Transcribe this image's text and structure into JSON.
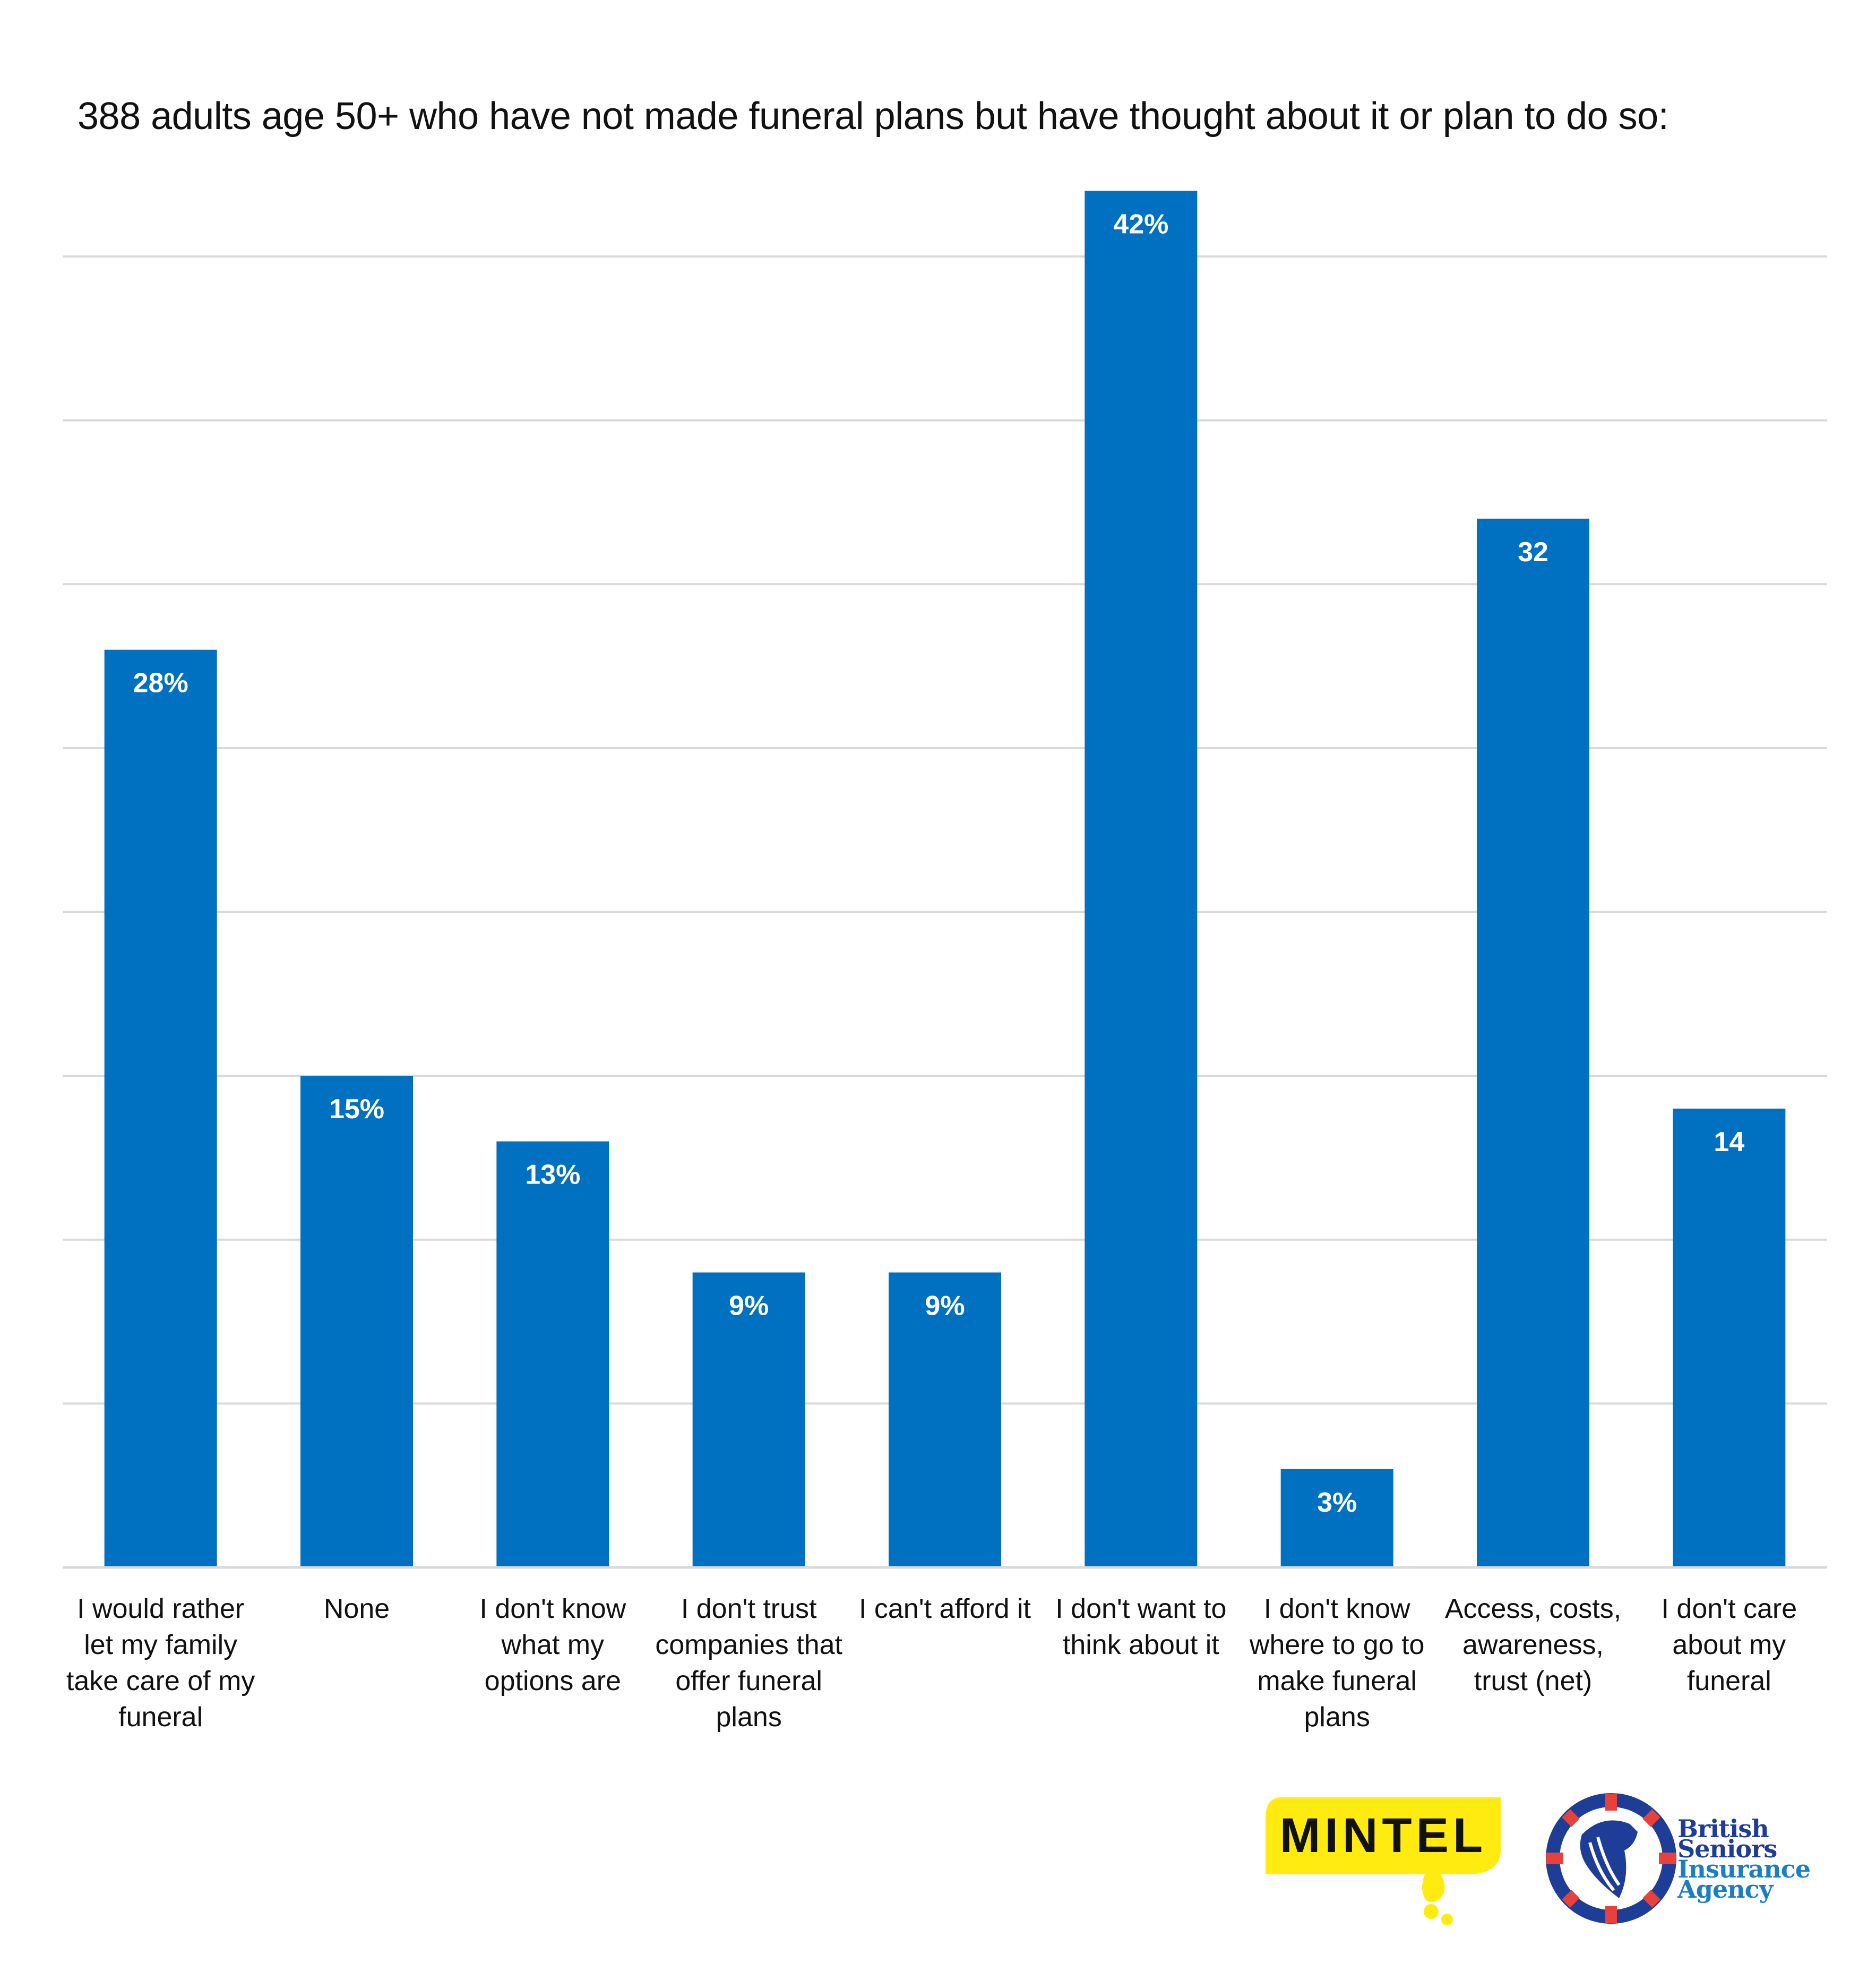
{
  "chart_data": {
    "type": "bar",
    "title": "388 adults age 50+ who have not made funeral plans but have thought about it or plan to do so:",
    "categories": [
      "I would rather let my family take care of my funeral",
      "None",
      "I don't know what my options are",
      "I don't trust companies that offer funeral plans",
      "I can't afford it",
      "I don't want to think about it",
      "I don't know where to go to make funeral plans",
      "Access, costs, awareness, trust (net)",
      "I don't care about my funeral"
    ],
    "category_lines": [
      [
        "I would rather",
        "let my family",
        "take care of my",
        "funeral"
      ],
      [
        "None"
      ],
      [
        "I don't know",
        "what my",
        "options are"
      ],
      [
        "I don't trust",
        "companies that",
        "offer funeral",
        "plans"
      ],
      [
        "I can't afford it"
      ],
      [
        "I don't want to",
        "think about it"
      ],
      [
        "I don't know",
        "where to go to",
        "make funeral",
        "plans"
      ],
      [
        "Access, costs,",
        "awareness,",
        "trust (net)"
      ],
      [
        "I don't care",
        "about my",
        "funeral"
      ]
    ],
    "values": [
      28,
      15,
      13,
      9,
      9,
      42,
      3,
      32,
      14
    ],
    "data_labels": [
      "28%",
      "15%",
      "13%",
      "9%",
      "9%",
      "42%",
      "3%",
      "32",
      "14"
    ],
    "xlabel": "",
    "ylabel": "",
    "ylim": [
      0,
      40
    ],
    "gridline_step": 5,
    "grid": true,
    "y_tick_labels_shown": false,
    "legend": "none",
    "bar_color": "#0070C0",
    "grid_color": "#D9D9D9"
  },
  "logos": {
    "mintel": "MINTEL",
    "bsia": [
      "British",
      "Seniors",
      "Insurance",
      "Agency"
    ],
    "mintel_color": "#FFEB0F",
    "bsia_dark": "#1E3D96",
    "bsia_light": "#1B7EC2",
    "bsia_red": "#E8403A"
  }
}
